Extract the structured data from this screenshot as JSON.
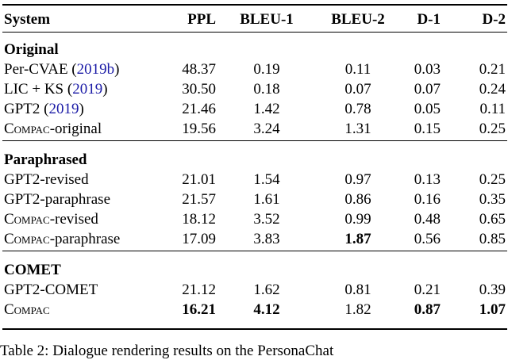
{
  "header": [
    "System",
    "PPL",
    "BLEU-1",
    "BLEU-2",
    "D-1",
    "D-2"
  ],
  "sections": [
    {
      "title": "Original",
      "rows": [
        {
          "name": "Per-CVAE (",
          "cite": "2019b",
          "after": ")",
          "vals": [
            "48.37",
            "0.19",
            "0.11",
            "0.03",
            "0.21"
          ],
          "bold": []
        },
        {
          "name": "LIC + KS (",
          "cite": "2019",
          "after": ")",
          "vals": [
            "30.50",
            "0.18",
            "0.07",
            "0.07",
            "0.24"
          ],
          "bold": []
        },
        {
          "name": "GPT2 (",
          "cite": "2019",
          "after": ")",
          "vals": [
            "21.46",
            "1.42",
            "0.78",
            "0.05",
            "0.11"
          ],
          "bold": []
        },
        {
          "name": "",
          "sc": "Compac",
          "after": "-original",
          "vals": [
            "19.56",
            "3.24",
            "1.31",
            "0.15",
            "0.25"
          ],
          "bold": []
        }
      ]
    },
    {
      "title": "Paraphrased",
      "rows": [
        {
          "name": "GPT2-revised",
          "vals": [
            "21.01",
            "1.54",
            "0.97",
            "0.13",
            "0.25"
          ],
          "bold": []
        },
        {
          "name": "GPT2-paraphrase",
          "vals": [
            "21.57",
            "1.61",
            "0.86",
            "0.16",
            "0.35"
          ],
          "bold": []
        },
        {
          "name": "",
          "sc": "Compac",
          "after": "-revised",
          "vals": [
            "18.12",
            "3.52",
            "0.99",
            "0.48",
            "0.65"
          ],
          "bold": []
        },
        {
          "name": "",
          "sc": "Compac",
          "after": "-paraphrase",
          "vals": [
            "17.09",
            "3.83",
            "1.87",
            "0.56",
            "0.85"
          ],
          "bold": [
            2
          ]
        }
      ]
    },
    {
      "title": "COMET",
      "rows": [
        {
          "name": "GPT2-COMET",
          "vals": [
            "21.12",
            "1.62",
            "0.81",
            "0.21",
            "0.39"
          ],
          "bold": []
        },
        {
          "name": "",
          "sc": "Compac",
          "vals": [
            "16.21",
            "4.12",
            "1.82",
            "0.87",
            "1.07"
          ],
          "bold": [
            0,
            1,
            3,
            4
          ]
        }
      ]
    }
  ],
  "caption": "Table 2: Dialogue rendering results on the PersonaChat"
}
